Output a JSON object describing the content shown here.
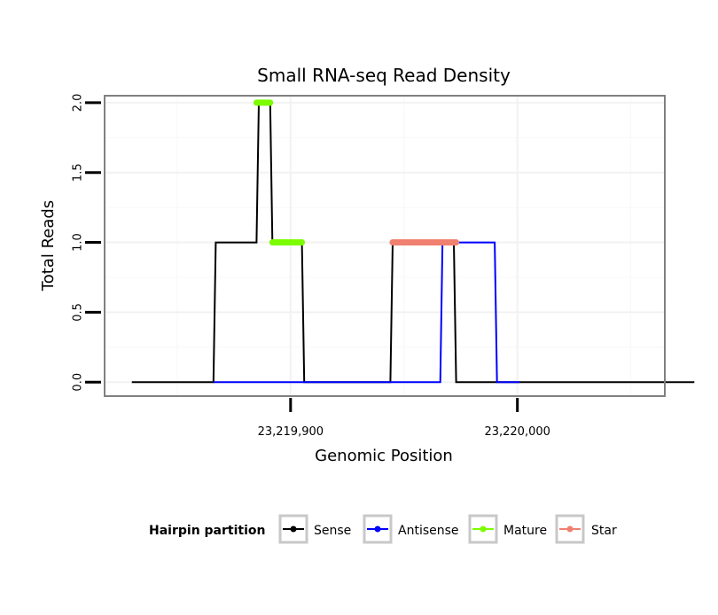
{
  "chart_data": {
    "type": "line",
    "title": "Small RNA-seq Read Density",
    "xlabel": "Genomic Position",
    "ylabel": "Total Reads",
    "xlim": [
      23219818,
      23220065
    ],
    "ylim": [
      -0.1,
      2.05
    ],
    "x_ticks": [
      {
        "value": 23219900,
        "label": "23,219,900"
      },
      {
        "value": 23220000,
        "label": "23,220,000"
      }
    ],
    "y_ticks": [
      {
        "value": 0,
        "label": "0.0"
      },
      {
        "value": 0.5,
        "label": "0.5"
      },
      {
        "value": 1,
        "label": "1.0"
      },
      {
        "value": 1.5,
        "label": "1.5"
      },
      {
        "value": 2,
        "label": "2.0"
      }
    ],
    "series": [
      {
        "name": "Sense",
        "color": "#000000",
        "stroke_width": 2,
        "x": [
          23219830,
          23219866,
          23219867,
          23219885,
          23219886,
          23219891,
          23219892,
          23219905,
          23219906,
          23219944,
          23219945,
          23219972,
          23219973,
          23220078
        ],
        "y": [
          0,
          0,
          1,
          1,
          2,
          2,
          1,
          1,
          0,
          0,
          1,
          1,
          0,
          0
        ]
      },
      {
        "name": "Antisense",
        "color": "#0000ff",
        "stroke_width": 2,
        "x": [
          23219866,
          23219966,
          23219967,
          23219990,
          23219991,
          23220001
        ],
        "y": [
          0,
          0,
          1,
          1,
          0,
          0
        ]
      },
      {
        "name": "Mature",
        "color": "#7cfc00",
        "stroke_width": 7,
        "segments": [
          {
            "x": [
              23219885,
              23219891
            ],
            "y": [
              2,
              2
            ]
          },
          {
            "x": [
              23219892,
              23219905
            ],
            "y": [
              1,
              1
            ]
          }
        ]
      },
      {
        "name": "Star",
        "color": "#f08070",
        "stroke_width": 7,
        "segments": [
          {
            "x": [
              23219945,
              23219973
            ],
            "y": [
              1,
              1
            ]
          }
        ]
      }
    ],
    "legend": {
      "title": "Hairpin partition",
      "position": "bottom",
      "entries": [
        {
          "label": "Sense",
          "color": "#000000"
        },
        {
          "label": "Antisense",
          "color": "#0000ff"
        },
        {
          "label": "Mature",
          "color": "#7cfc00"
        },
        {
          "label": "Star",
          "color": "#f08070"
        }
      ]
    }
  }
}
